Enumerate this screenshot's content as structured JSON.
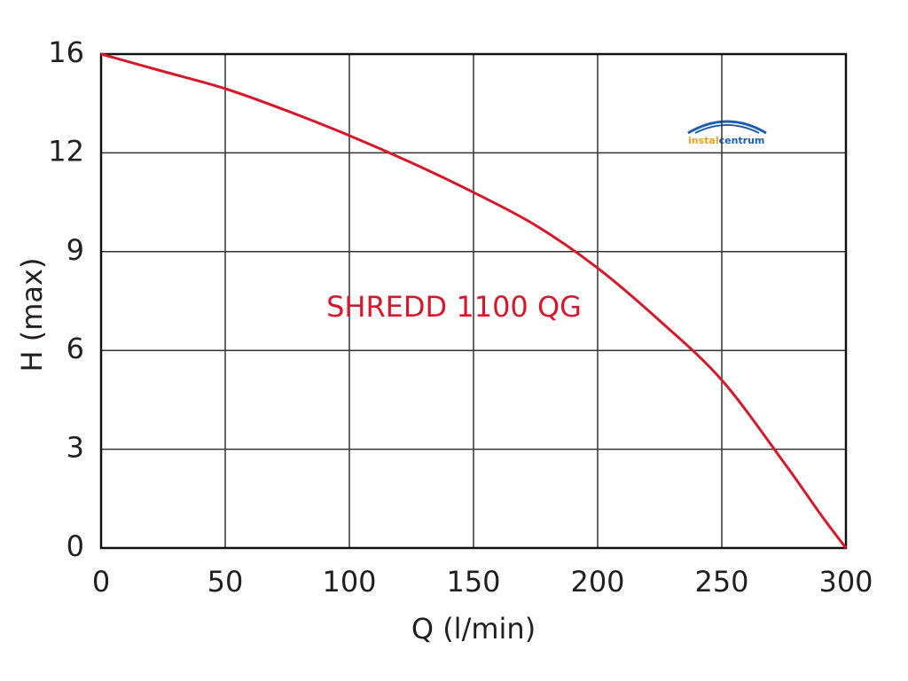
{
  "chart_data": {
    "type": "line",
    "x_label": "Q (l/min)",
    "y_label": "H (max)",
    "annotation": "SHREDD 1100 QG",
    "logo": [
      "instal",
      "centrum"
    ],
    "x": [
      0,
      25,
      50,
      75,
      100,
      125,
      150,
      175,
      200,
      225,
      250,
      275,
      290,
      300
    ],
    "series": [
      {
        "name": "SHREDD 1100 QG",
        "color": "#d7182a",
        "values": [
          16,
          15.3,
          14.6,
          13.7,
          12.7,
          11.7,
          10.8,
          9.8,
          8.5,
          6.9,
          5.1,
          2.6,
          1.0,
          0
        ]
      }
    ],
    "xlim": [
      0,
      300
    ],
    "xticks": [
      0,
      50,
      100,
      150,
      200,
      250,
      300
    ],
    "ylim": [
      0,
      16
    ],
    "yticks": [
      0,
      3,
      6,
      9,
      12,
      16
    ],
    "grid": true
  }
}
